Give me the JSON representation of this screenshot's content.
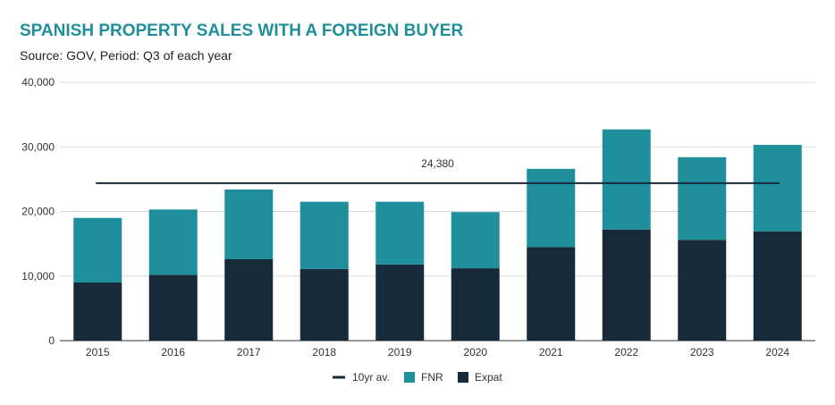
{
  "chart_data": {
    "type": "bar",
    "stacked": true,
    "title": "SPANISH PROPERTY SALES WITH A FOREIGN BUYER",
    "subtitle": "Source: GOV, Period: Q3 of each year",
    "categories": [
      "2015",
      "2016",
      "2017",
      "2018",
      "2019",
      "2020",
      "2021",
      "2022",
      "2023",
      "2024"
    ],
    "series": [
      {
        "name": "Expat",
        "color": "#172a3a",
        "values": [
          9000,
          10200,
          12600,
          11100,
          11800,
          11200,
          14500,
          17200,
          15600,
          16900
        ]
      },
      {
        "name": "FNR",
        "color": "#1f8f9c",
        "values": [
          10000,
          10100,
          10800,
          10400,
          9700,
          8700,
          12100,
          15500,
          12800,
          13400
        ]
      }
    ],
    "average_line": {
      "name": "10yr av.",
      "value": 24380,
      "label": "24,380",
      "color": "#172a3a"
    },
    "yticks": [
      "0",
      "10,000",
      "20,000",
      "30,000",
      "40,000"
    ],
    "ylim": [
      0,
      40000
    ],
    "grid": true,
    "legend": {
      "placement": "bottom",
      "entries": [
        "10yr av.",
        "FNR",
        "Expat"
      ]
    }
  }
}
